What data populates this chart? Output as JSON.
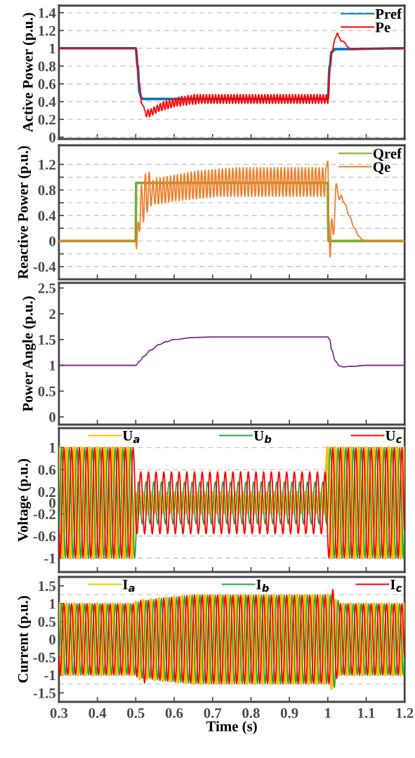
{
  "chart_data": [
    {
      "type": "line",
      "ylabel": "Active Power (p.u.)",
      "xlim": [
        0.3,
        1.2
      ],
      "xticks": [
        0.3,
        0.4,
        0.5,
        0.6,
        0.7,
        0.8,
        0.9,
        1,
        1.1,
        1.2
      ],
      "ylim": [
        -0.02,
        1.48
      ],
      "yticks": [
        0,
        0.2,
        0.4,
        0.6,
        0.8,
        1,
        1.2,
        1.4
      ],
      "grid": "y",
      "legend": "top right",
      "tick_labels": "y",
      "series": [
        {
          "name": "Pref",
          "color": "#0072bd",
          "x": [
            0.3,
            0.5,
            0.505,
            0.51,
            0.515,
            0.52,
            1.0,
            1.005,
            1.01,
            1.02,
            1.2
          ],
          "values": [
            1,
            1,
            0.8,
            0.5,
            0.44,
            0.43,
            0.43,
            0.8,
            0.96,
            0.99,
            1
          ]
        },
        {
          "name": "Pe",
          "color": "#ff0000",
          "x": [
            0.3,
            0.5,
            0.505,
            0.507,
            0.51,
            0.515,
            0.52,
            0.524,
            0.528,
            0.532,
            0.536,
            0.54,
            0.544,
            0.548,
            0.552,
            0.556,
            0.56,
            0.564,
            0.568,
            0.572,
            0.576,
            0.58,
            0.584,
            0.588,
            0.592,
            0.596,
            0.6,
            0.604,
            0.608,
            0.612,
            0.616,
            0.62,
            0.624,
            0.628,
            0.632,
            0.636,
            0.64,
            0.644,
            0.648,
            0.652,
            0.656,
            0.66,
            0.664,
            0.668,
            0.672,
            0.676,
            0.68,
            0.684,
            0.688,
            0.692,
            0.696,
            0.7,
            0.704,
            0.708,
            0.712,
            0.716,
            0.72,
            0.724,
            0.728,
            0.732,
            0.736,
            0.74,
            0.744,
            0.748,
            0.752,
            0.756,
            0.76,
            0.764,
            0.768,
            0.772,
            0.776,
            0.78,
            0.784,
            0.788,
            0.792,
            0.796,
            0.8,
            0.804,
            0.808,
            0.812,
            0.816,
            0.82,
            0.824,
            0.828,
            0.832,
            0.836,
            0.84,
            0.844,
            0.848,
            0.852,
            0.856,
            0.86,
            0.864,
            0.868,
            0.872,
            0.876,
            0.88,
            0.884,
            0.888,
            0.892,
            0.896,
            0.9,
            0.904,
            0.908,
            0.912,
            0.916,
            0.92,
            0.924,
            0.928,
            0.932,
            0.936,
            0.94,
            0.944,
            0.948,
            0.952,
            0.956,
            0.96,
            0.964,
            0.968,
            0.972,
            0.976,
            0.98,
            0.984,
            0.988,
            0.992,
            0.996,
            1.0,
            1.005,
            1.01,
            1.02,
            1.025,
            1.03,
            1.035,
            1.04,
            1.045,
            1.05,
            1.06,
            1.08,
            1.1,
            1.2
          ],
          "values": [
            1,
            1,
            0.75,
            0.62,
            0.6,
            0.38,
            0.35,
            0.3,
            0.23,
            0.31,
            0.23,
            0.32,
            0.25,
            0.34,
            0.27,
            0.36,
            0.29,
            0.38,
            0.3,
            0.4,
            0.31,
            0.41,
            0.32,
            0.42,
            0.33,
            0.43,
            0.34,
            0.44,
            0.35,
            0.45,
            0.35,
            0.46,
            0.36,
            0.46,
            0.36,
            0.47,
            0.37,
            0.47,
            0.37,
            0.48,
            0.37,
            0.48,
            0.38,
            0.48,
            0.38,
            0.48,
            0.38,
            0.48,
            0.38,
            0.48,
            0.38,
            0.48,
            0.38,
            0.48,
            0.38,
            0.48,
            0.38,
            0.48,
            0.38,
            0.48,
            0.38,
            0.48,
            0.38,
            0.48,
            0.38,
            0.48,
            0.38,
            0.48,
            0.38,
            0.48,
            0.38,
            0.48,
            0.38,
            0.48,
            0.38,
            0.48,
            0.38,
            0.48,
            0.38,
            0.48,
            0.38,
            0.48,
            0.38,
            0.48,
            0.38,
            0.48,
            0.38,
            0.48,
            0.38,
            0.48,
            0.38,
            0.48,
            0.38,
            0.48,
            0.38,
            0.48,
            0.38,
            0.48,
            0.38,
            0.48,
            0.38,
            0.48,
            0.38,
            0.48,
            0.38,
            0.48,
            0.38,
            0.48,
            0.38,
            0.48,
            0.38,
            0.48,
            0.38,
            0.48,
            0.38,
            0.48,
            0.38,
            0.48,
            0.38,
            0.48,
            0.38,
            0.48,
            0.38,
            0.48,
            0.38,
            0.48,
            0.38,
            0.75,
            0.95,
            1.12,
            1.17,
            1.12,
            1.08,
            1.08,
            1.06,
            1.02,
            0.99,
            0.99,
            1.0,
            1.0
          ]
        }
      ]
    },
    {
      "type": "line",
      "ylabel": "Reactive Power (p.u.)",
      "xlim": [
        0.3,
        1.2
      ],
      "xticks": [
        0.3,
        0.4,
        0.5,
        0.6,
        0.7,
        0.8,
        0.9,
        1,
        1.1,
        1.2
      ],
      "ylim": [
        -0.6,
        1.5
      ],
      "yticks": [
        -0.4,
        {
          "value": -0.2,
          "label": null
        },
        0,
        {
          "value": 0.2,
          "label": null
        },
        0.4,
        {
          "value": 0.6,
          "label": null
        },
        0.8,
        {
          "value": 1.0,
          "label": null
        },
        1.2
      ],
      "grid": "y",
      "legend": "top right",
      "tick_labels": "y",
      "series": [
        {
          "name": "Qref",
          "color": "#77ac30",
          "x": [
            0.3,
            0.5,
            0.501,
            1.0,
            1.001,
            1.002,
            1.2
          ],
          "values": [
            0,
            0,
            0.91,
            0.91,
            0.3,
            0,
            0
          ]
        },
        {
          "name": "Qe",
          "color": "#ef7f2a",
          "x": [
            0.3,
            0.5,
            0.502,
            0.506,
            0.51,
            0.515,
            0.52,
            0.525,
            0.53,
            0.535,
            0.54,
            0.545,
            0.55,
            0.5545,
            0.559,
            0.5635,
            0.568,
            0.5725,
            0.577,
            0.5815,
            0.586,
            0.5905,
            0.595,
            0.5995,
            0.604,
            0.6085,
            0.613,
            0.6175,
            0.622,
            0.6265,
            0.631,
            0.6355,
            0.64,
            0.6445,
            0.649,
            0.6535,
            0.658,
            0.6625,
            0.667,
            0.6715,
            0.676,
            0.6805,
            0.685,
            0.6895,
            0.694,
            0.6985,
            0.703,
            0.7075,
            0.712,
            0.7165,
            0.721,
            0.7255,
            0.73,
            0.7345,
            0.739,
            0.7435,
            0.748,
            0.7525,
            0.757,
            0.7615,
            0.766,
            0.7705,
            0.775,
            0.7795,
            0.784,
            0.7885,
            0.793,
            0.7975,
            0.802,
            0.8065,
            0.811,
            0.8155,
            0.82,
            0.8245,
            0.829,
            0.8335,
            0.838,
            0.8425,
            0.847,
            0.8515,
            0.856,
            0.8605,
            0.865,
            0.8695,
            0.874,
            0.8785,
            0.883,
            0.8875,
            0.892,
            0.8965,
            0.901,
            0.9055,
            0.91,
            0.9145,
            0.919,
            0.9235,
            0.928,
            0.9325,
            0.937,
            0.9415,
            0.946,
            0.9505,
            0.955,
            0.9595,
            0.964,
            0.9685,
            0.973,
            0.9775,
            0.982,
            0.9865,
            0.991,
            0.9955,
            1.0,
            1.003,
            1.006,
            1.01,
            1.015,
            1.022,
            1.03,
            1.035,
            1.04,
            1.045,
            1.055,
            1.07,
            1.08,
            1.09,
            1.1,
            1.2
          ],
          "values": [
            0,
            0,
            -0.12,
            0.3,
            0.15,
            0.88,
            0.3,
            1.05,
            0.45,
            1.08,
            0.55,
            0.95,
            0.58,
            0.98,
            0.58,
            0.99,
            0.59,
            1.0,
            0.6,
            1.01,
            0.61,
            1.02,
            0.62,
            1.03,
            0.63,
            1.04,
            0.63,
            1.05,
            0.64,
            1.06,
            0.65,
            1.07,
            0.65,
            1.08,
            0.66,
            1.09,
            0.66,
            1.1,
            0.67,
            1.1,
            0.67,
            1.11,
            0.68,
            1.11,
            0.68,
            1.12,
            0.69,
            1.12,
            0.7,
            1.13,
            0.7,
            1.13,
            0.7,
            1.14,
            0.7,
            1.14,
            0.7,
            1.14,
            0.7,
            1.15,
            0.7,
            1.15,
            0.7,
            1.15,
            0.7,
            1.15,
            0.7,
            1.15,
            0.7,
            1.15,
            0.7,
            1.15,
            0.7,
            1.15,
            0.7,
            1.15,
            0.7,
            1.15,
            0.7,
            1.15,
            0.7,
            1.15,
            0.7,
            1.15,
            0.7,
            1.15,
            0.7,
            1.15,
            0.7,
            1.15,
            0.7,
            1.15,
            0.7,
            1.15,
            0.7,
            1.15,
            0.7,
            1.15,
            0.7,
            1.15,
            0.7,
            1.15,
            0.7,
            1.15,
            0.7,
            1.15,
            0.7,
            1.15,
            0.7,
            1.15,
            0.7,
            1.15,
            1.25,
            0.3,
            -0.25,
            0.35,
            0.1,
            0.9,
            0.65,
            0.72,
            0.62,
            0.58,
            0.4,
            0.2,
            0.08,
            0.02,
            0,
            0
          ]
        }
      ]
    },
    {
      "type": "line",
      "ylabel": "Power Angle (p.u.)",
      "xlim": [
        0.3,
        1.2
      ],
      "xticks": [
        0.3,
        0.4,
        0.5,
        0.6,
        0.7,
        0.8,
        0.9,
        1,
        1.1,
        1.2
      ],
      "ylim": [
        -0.15,
        2.6
      ],
      "yticks": [
        0,
        0.5,
        1,
        1.5,
        2,
        2.5
      ],
      "tick_labels": "y",
      "series": [
        {
          "color": "#7e2f8e",
          "x": [
            0.3,
            0.5,
            0.51,
            0.52,
            0.54,
            0.56,
            0.58,
            0.6,
            0.65,
            0.7,
            1.0,
            1.005,
            1.01,
            1.02,
            1.03,
            1.04,
            1.06,
            1.1,
            1.2
          ],
          "values": [
            1,
            1,
            1.08,
            1.17,
            1.3,
            1.4,
            1.46,
            1.5,
            1.54,
            1.55,
            1.55,
            1.5,
            1.3,
            1.08,
            0.99,
            0.97,
            0.98,
            1,
            1
          ]
        }
      ]
    },
    {
      "type": "line",
      "ylabel": "Voltage (p.u.)",
      "xlim": [
        0.3,
        1.2
      ],
      "xticks": [
        0.3,
        0.4,
        0.5,
        0.6,
        0.7,
        0.8,
        0.9,
        1,
        1.1,
        1.2
      ],
      "ylim": [
        -1.25,
        1.35
      ],
      "yticks": [
        -1,
        -0.6,
        -0.2,
        0,
        0.2,
        0.6,
        1
      ],
      "grid": "y",
      "legend": "top",
      "tick_labels": "y",
      "x": [
        0.3,
        0.31,
        0.32,
        0.33,
        0.34,
        0.35,
        0.36,
        0.37,
        0.38,
        0.39,
        0.4,
        0.41,
        0.42,
        0.43,
        0.44,
        0.45,
        0.46,
        0.47,
        0.48,
        0.49,
        0.5,
        0.51,
        0.52,
        0.53,
        0.54,
        0.55,
        0.56,
        0.57,
        0.58,
        0.59,
        0.6,
        0.61,
        0.62,
        0.63,
        0.64,
        0.65,
        0.66,
        0.67,
        0.68,
        0.69,
        0.7,
        0.71,
        0.72,
        0.73,
        0.74,
        0.75,
        0.76,
        0.77,
        0.78,
        0.79,
        0.8,
        0.81,
        0.82,
        0.83,
        0.84,
        0.85,
        0.86,
        0.87,
        0.88,
        0.89,
        0.9,
        0.91,
        0.92,
        0.93,
        0.94,
        0.95,
        0.96,
        0.97,
        0.98,
        0.99,
        1.0,
        1.01,
        1.02,
        1.03,
        1.04,
        1.05,
        1.06,
        1.07,
        1.08,
        1.09,
        1.1,
        1.11,
        1.12,
        1.13,
        1.14,
        1.15,
        1.16,
        1.17,
        1.18,
        1.19,
        1.2
      ],
      "series": [
        {
          "name": "U$_{a}$",
          "color": "#ffc000",
          "values": [
            1,
            -1,
            1,
            -1,
            1,
            -1,
            1,
            -1,
            1,
            -1,
            1,
            -1,
            1,
            -1,
            1,
            -1,
            1,
            -1,
            1,
            -1,
            0.18,
            -0.18,
            0.18,
            -0.18,
            0.18,
            -0.18,
            0.18,
            -0.18,
            0.18,
            -0.18,
            0.18,
            -0.18,
            0.18,
            -0.18,
            0.18,
            -0.18,
            0.18,
            -0.18,
            0.18,
            -0.18,
            0.18,
            -0.18,
            0.18,
            -0.18,
            0.18,
            -0.18,
            0.18,
            -0.18,
            0.18,
            -0.18,
            0.18,
            -0.18,
            0.18,
            -0.18,
            0.18,
            -0.18,
            0.18,
            -0.18,
            0.18,
            -0.18,
            0.18,
            -0.18,
            0.18,
            -0.18,
            0.18,
            -0.18,
            0.18,
            -0.18,
            0.18,
            -0.18,
            1,
            -1,
            1,
            -1,
            1,
            -1,
            1,
            -1,
            1,
            -1,
            1,
            -1,
            1,
            -1,
            1,
            -1,
            1,
            -1,
            1,
            -1,
            1
          ]
        },
        {
          "name": "U$_{b}$",
          "color": "#22a845",
          "x": [
            0.3,
            0.307,
            0.317,
            0.327,
            0.337,
            0.347,
            0.357,
            0.367,
            0.377,
            0.387,
            0.397,
            0.407,
            0.417,
            0.427,
            0.437,
            0.447,
            0.457,
            0.467,
            0.477,
            0.487,
            0.497,
            0.507,
            0.517,
            0.527,
            0.537,
            0.547,
            0.557,
            0.567,
            0.577,
            0.587,
            0.597,
            0.607,
            0.617,
            0.627,
            0.637,
            0.647,
            0.657,
            0.667,
            0.677,
            0.687,
            0.697,
            0.707,
            0.717,
            0.727,
            0.737,
            0.747,
            0.757,
            0.767,
            0.777,
            0.787,
            0.797,
            0.807,
            0.817,
            0.827,
            0.837,
            0.847,
            0.857,
            0.867,
            0.877,
            0.887,
            0.897,
            0.907,
            0.917,
            0.927,
            0.937,
            0.947,
            0.957,
            0.967,
            0.977,
            0.987,
            0.997,
            1.007,
            1.017,
            1.027,
            1.037,
            1.047,
            1.057,
            1.067,
            1.077,
            1.087,
            1.097,
            1.107,
            1.117,
            1.127,
            1.137,
            1.147,
            1.157,
            1.167,
            1.177,
            1.187,
            1.197,
            1.2
          ],
          "values": [
            -0.5,
            1,
            -1,
            1,
            -1,
            1,
            -1,
            1,
            -1,
            1,
            -1,
            1,
            -1,
            1,
            -1,
            1,
            -1,
            1,
            -1,
            1,
            -1,
            0.38,
            -0.38,
            0.38,
            -0.38,
            0.38,
            -0.38,
            0.38,
            -0.38,
            0.38,
            -0.38,
            0.38,
            -0.38,
            0.38,
            -0.38,
            0.38,
            -0.38,
            0.38,
            -0.38,
            0.38,
            -0.38,
            0.38,
            -0.38,
            0.38,
            -0.38,
            0.38,
            -0.38,
            0.38,
            -0.38,
            0.38,
            -0.38,
            0.38,
            -0.38,
            0.38,
            -0.38,
            0.38,
            -0.38,
            0.38,
            -0.38,
            0.38,
            -0.38,
            0.38,
            -0.38,
            0.38,
            -0.38,
            0.38,
            -0.38,
            0.38,
            -0.38,
            0.38,
            -0.38,
            1,
            -1,
            1,
            -1,
            1,
            -1,
            1,
            -1,
            1,
            -1,
            1,
            -1,
            1,
            -1,
            1,
            -1,
            1,
            -1,
            1,
            -1,
            -0.5
          ]
        },
        {
          "name": "U$_{c}$",
          "color": "#ff0000",
          "x": [
            0.3,
            0.303,
            0.313,
            0.323,
            0.333,
            0.343,
            0.353,
            0.363,
            0.373,
            0.383,
            0.393,
            0.403,
            0.413,
            0.423,
            0.433,
            0.443,
            0.453,
            0.463,
            0.473,
            0.483,
            0.493,
            0.503,
            0.513,
            0.523,
            0.533,
            0.543,
            0.553,
            0.563,
            0.573,
            0.583,
            0.593,
            0.603,
            0.613,
            0.623,
            0.633,
            0.643,
            0.653,
            0.663,
            0.673,
            0.683,
            0.693,
            0.703,
            0.713,
            0.723,
            0.733,
            0.743,
            0.753,
            0.763,
            0.773,
            0.783,
            0.793,
            0.803,
            0.813,
            0.823,
            0.833,
            0.843,
            0.853,
            0.863,
            0.873,
            0.883,
            0.893,
            0.903,
            0.913,
            0.923,
            0.933,
            0.943,
            0.953,
            0.963,
            0.973,
            0.983,
            0.993,
            1.003,
            1.013,
            1.023,
            1.033,
            1.043,
            1.053,
            1.063,
            1.073,
            1.083,
            1.093,
            1.103,
            1.113,
            1.123,
            1.133,
            1.143,
            1.153,
            1.163,
            1.173,
            1.183,
            1.193,
            1.2
          ],
          "values": [
            -0.5,
            -1,
            1,
            -1,
            1,
            -1,
            1,
            -1,
            1,
            -1,
            1,
            -1,
            1,
            -1,
            1,
            -1,
            1,
            -1,
            1,
            -1,
            1,
            -0.56,
            0.56,
            -0.56,
            0.56,
            -0.56,
            0.56,
            -0.56,
            0.56,
            -0.56,
            0.56,
            -0.56,
            0.56,
            -0.56,
            0.56,
            -0.56,
            0.56,
            -0.56,
            0.56,
            -0.56,
            0.56,
            -0.56,
            0.56,
            -0.56,
            0.56,
            -0.56,
            0.56,
            -0.56,
            0.56,
            -0.56,
            0.56,
            -0.56,
            0.56,
            -0.56,
            0.56,
            -0.56,
            0.56,
            -0.56,
            0.56,
            -0.56,
            0.56,
            -0.56,
            0.56,
            -0.56,
            0.56,
            -0.56,
            0.56,
            -0.56,
            0.56,
            -0.56,
            0.56,
            -1,
            1,
            -1,
            1,
            -1,
            1,
            -1,
            1,
            -1,
            1,
            -1,
            1,
            -1,
            1,
            -1,
            1,
            -1,
            1,
            -1,
            1,
            -0.5
          ]
        }
      ]
    },
    {
      "type": "line",
      "ylabel": "Current (p.u.)",
      "xlabel": "Time (s)",
      "xlim": [
        0.3,
        1.2
      ],
      "xticks": [
        0.3,
        0.4,
        0.5,
        0.6,
        0.7,
        0.8,
        0.9,
        1,
        1.1,
        1.2
      ],
      "ylim": [
        -1.75,
        1.75
      ],
      "yticks": [
        -1.5,
        -1,
        -0.5,
        0,
        0.5,
        1,
        1.5
      ],
      "legend": "top",
      "ref_lines": [
        {
          "axis": "y",
          "value": 1.25,
          "color": "#c8c8c8",
          "line_style": "dashed"
        },
        {
          "axis": "y",
          "value": -1.25,
          "color": "#c8c8c8",
          "line_style": "dashed"
        }
      ],
      "x": [
        0.3,
        0.31,
        0.32,
        0.33,
        0.34,
        0.35,
        0.36,
        0.37,
        0.38,
        0.39,
        0.4,
        0.41,
        0.42,
        0.43,
        0.44,
        0.45,
        0.46,
        0.47,
        0.48,
        0.49,
        0.5,
        0.51,
        0.52,
        0.53,
        0.54,
        0.55,
        0.56,
        0.57,
        0.58,
        0.59,
        0.6,
        0.61,
        0.62,
        0.63,
        0.64,
        0.65,
        0.66,
        0.67,
        0.68,
        0.69,
        0.7,
        0.71,
        0.72,
        0.73,
        0.74,
        0.75,
        0.76,
        0.77,
        0.78,
        0.79,
        0.8,
        0.81,
        0.82,
        0.83,
        0.84,
        0.85,
        0.86,
        0.87,
        0.88,
        0.89,
        0.9,
        0.91,
        0.92,
        0.93,
        0.94,
        0.95,
        0.96,
        0.97,
        0.98,
        0.99,
        1.0,
        1.01,
        1.02,
        1.03,
        1.04,
        1.05,
        1.06,
        1.07,
        1.08,
        1.09,
        1.1,
        1.11,
        1.12,
        1.13,
        1.14,
        1.15,
        1.16,
        1.17,
        1.18,
        1.19,
        1.2
      ],
      "series": [
        {
          "name": "I$_{a}$",
          "color": "#ffc000",
          "values": [
            1,
            -1,
            1,
            -1,
            1,
            -1,
            1,
            -1,
            1,
            -1,
            1,
            -1,
            1,
            -1,
            1,
            -1,
            1,
            -1,
            1,
            -1,
            1.05,
            -1.1,
            1.1,
            -1.1,
            1.12,
            -1.13,
            1.15,
            -1.16,
            1.17,
            -1.18,
            1.19,
            -1.2,
            1.21,
            -1.22,
            1.23,
            -1.24,
            1.24,
            -1.24,
            1.24,
            -1.24,
            1.24,
            -1.24,
            1.24,
            -1.24,
            1.24,
            -1.24,
            1.24,
            -1.24,
            1.24,
            -1.24,
            1.24,
            -1.24,
            1.24,
            -1.24,
            1.24,
            -1.24,
            1.24,
            -1.24,
            1.24,
            -1.24,
            1.24,
            -1.24,
            1.24,
            -1.24,
            1.24,
            -1.24,
            1.24,
            -1.24,
            1.24,
            -1.24,
            1.25,
            -1.38,
            1.1,
            -1,
            1,
            -1,
            1,
            -1,
            1,
            -1,
            1,
            -1,
            1,
            -1,
            1,
            -1,
            1,
            -1,
            1,
            -1,
            1
          ]
        },
        {
          "name": "I$_{b}$",
          "color": "#22a845",
          "x": [
            0.3,
            0.307,
            0.317,
            0.327,
            0.337,
            0.347,
            0.357,
            0.367,
            0.377,
            0.387,
            0.397,
            0.407,
            0.417,
            0.427,
            0.437,
            0.447,
            0.457,
            0.467,
            0.477,
            0.487,
            0.497,
            0.507,
            0.517,
            0.527,
            0.537,
            0.547,
            0.557,
            0.567,
            0.577,
            0.587,
            0.597,
            0.607,
            0.617,
            0.627,
            0.637,
            0.647,
            0.657,
            0.667,
            0.677,
            0.687,
            0.697,
            0.707,
            0.717,
            0.727,
            0.737,
            0.747,
            0.757,
            0.767,
            0.777,
            0.787,
            0.797,
            0.807,
            0.817,
            0.827,
            0.837,
            0.847,
            0.857,
            0.867,
            0.877,
            0.887,
            0.897,
            0.907,
            0.917,
            0.927,
            0.937,
            0.947,
            0.957,
            0.967,
            0.977,
            0.987,
            0.997,
            1.007,
            1.017,
            1.027,
            1.037,
            1.047,
            1.057,
            1.067,
            1.077,
            1.087,
            1.097,
            1.107,
            1.117,
            1.127,
            1.137,
            1.147,
            1.157,
            1.167,
            1.177,
            1.187,
            1.197,
            1.2
          ],
          "values": [
            -0.5,
            1,
            -1,
            1,
            -1,
            1,
            -1,
            1,
            -1,
            1,
            -1,
            1,
            -1,
            1,
            -1,
            1,
            -1,
            1,
            -1,
            1,
            -1,
            1.05,
            -1.1,
            1.1,
            -1.1,
            1.12,
            -1.13,
            1.15,
            -1.16,
            1.17,
            -1.18,
            1.19,
            -1.2,
            1.21,
            -1.22,
            1.23,
            -1.24,
            1.24,
            -1.24,
            1.24,
            -1.24,
            1.24,
            -1.24,
            1.24,
            -1.24,
            1.24,
            -1.24,
            1.24,
            -1.24,
            1.24,
            -1.24,
            1.24,
            -1.24,
            1.24,
            -1.24,
            1.24,
            -1.24,
            1.24,
            -1.24,
            1.24,
            -1.24,
            1.24,
            -1.24,
            1.24,
            -1.24,
            1.24,
            -1.24,
            1.24,
            -1.24,
            1.24,
            -1.24,
            1.25,
            -1.35,
            1.1,
            -1,
            1,
            -1,
            1,
            -1,
            1,
            -1,
            1,
            -1,
            1,
            -1,
            1,
            -1,
            1,
            -1,
            1,
            -1,
            -0.5
          ]
        },
        {
          "name": "I$_{c}$",
          "color": "#ff0000",
          "x": [
            0.3,
            0.303,
            0.313,
            0.323,
            0.333,
            0.343,
            0.353,
            0.363,
            0.373,
            0.383,
            0.393,
            0.403,
            0.413,
            0.423,
            0.433,
            0.443,
            0.453,
            0.463,
            0.473,
            0.483,
            0.493,
            0.503,
            0.513,
            0.523,
            0.533,
            0.543,
            0.553,
            0.563,
            0.573,
            0.583,
            0.593,
            0.603,
            0.613,
            0.623,
            0.633,
            0.643,
            0.653,
            0.663,
            0.673,
            0.683,
            0.693,
            0.703,
            0.713,
            0.723,
            0.733,
            0.743,
            0.753,
            0.763,
            0.773,
            0.783,
            0.793,
            0.803,
            0.813,
            0.823,
            0.833,
            0.843,
            0.853,
            0.863,
            0.873,
            0.883,
            0.893,
            0.903,
            0.913,
            0.923,
            0.933,
            0.943,
            0.953,
            0.963,
            0.973,
            0.983,
            0.993,
            1.003,
            1.013,
            1.023,
            1.033,
            1.043,
            1.053,
            1.063,
            1.073,
            1.083,
            1.093,
            1.103,
            1.113,
            1.123,
            1.133,
            1.143,
            1.153,
            1.163,
            1.173,
            1.183,
            1.193,
            1.2
          ],
          "values": [
            -0.5,
            -1,
            1,
            -1,
            1,
            -1,
            1,
            -1,
            1,
            -1,
            1,
            -1,
            1,
            -1,
            1,
            -1,
            1,
            -1,
            1,
            -1,
            1,
            -1.05,
            1.1,
            -1.22,
            1.1,
            -1.12,
            1.13,
            -1.15,
            1.16,
            -1.17,
            1.18,
            -1.19,
            1.2,
            -1.21,
            1.22,
            -1.23,
            1.24,
            -1.24,
            1.24,
            -1.24,
            1.24,
            -1.24,
            1.24,
            -1.24,
            1.24,
            -1.24,
            1.24,
            -1.24,
            1.24,
            -1.24,
            1.24,
            -1.24,
            1.24,
            -1.24,
            1.24,
            -1.24,
            1.24,
            -1.24,
            1.24,
            -1.24,
            1.24,
            -1.24,
            1.24,
            -1.24,
            1.24,
            -1.24,
            1.24,
            -1.24,
            1.24,
            -1.24,
            1.24,
            -1.25,
            1.4,
            -1.1,
            1,
            -1,
            1,
            -1,
            1,
            -1,
            1,
            -1,
            1,
            -1,
            1,
            -1,
            1,
            -1,
            1,
            -1,
            1,
            -0.5
          ]
        }
      ]
    }
  ]
}
